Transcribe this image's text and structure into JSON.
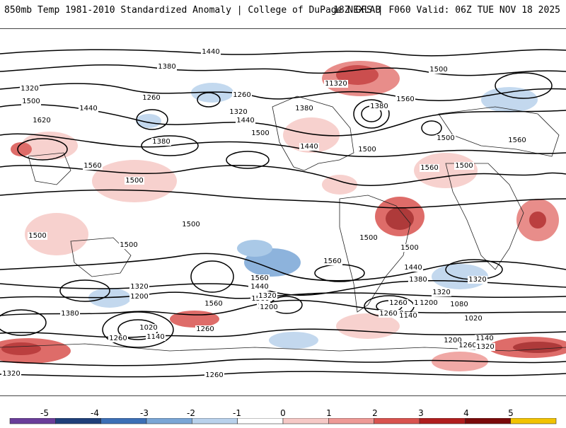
{
  "header": {
    "title": "850mb Temp 1981-2010 Standardized Anomaly | College of DuPage NEXLAB",
    "model_info": "18Z GFS | F060 Valid: 06Z TUE NOV 18 2025"
  },
  "colorbar": {
    "ticks": [
      "-5",
      "-4",
      "-3",
      "-2",
      "-1",
      "0",
      "1",
      "2",
      "3",
      "4",
      "5"
    ],
    "colors": [
      "#6a3d9a",
      "#1f3f7a",
      "#3c6fb6",
      "#7aa6d6",
      "#b9d2ec",
      "#ffffff",
      "#f6c9c6",
      "#ee9a96",
      "#d9534f",
      "#b01e1e",
      "#7a0a0a",
      "#f2c300"
    ]
  },
  "contour_labels": [
    "1440",
    "1380",
    "1320",
    "1260",
    "1500",
    "1440",
    "1620",
    "1560",
    "1380",
    "1260",
    "1320",
    "1440",
    "1500",
    "1380",
    "1440",
    "1320",
    "1500",
    "1560",
    "1560",
    "1500",
    "1380",
    "1440",
    "1500",
    "1560",
    "1500",
    "1500",
    "1500",
    "1500",
    "1500",
    "1500",
    "1560",
    "1440",
    "1380",
    "1560",
    "1440",
    "1320",
    "1200",
    "1380",
    "1020",
    "1140",
    "1260",
    "1260",
    "1560",
    "1380",
    "1500",
    "1440",
    "1320",
    "1200",
    "1140",
    "1260",
    "1200",
    "1320",
    "1260",
    "1140",
    "1200",
    "1080",
    "1020",
    "1200",
    "1260",
    "1140",
    "1320",
    "1260",
    "1320",
    "1320",
    "1560",
    "1500",
    "1500"
  ]
}
